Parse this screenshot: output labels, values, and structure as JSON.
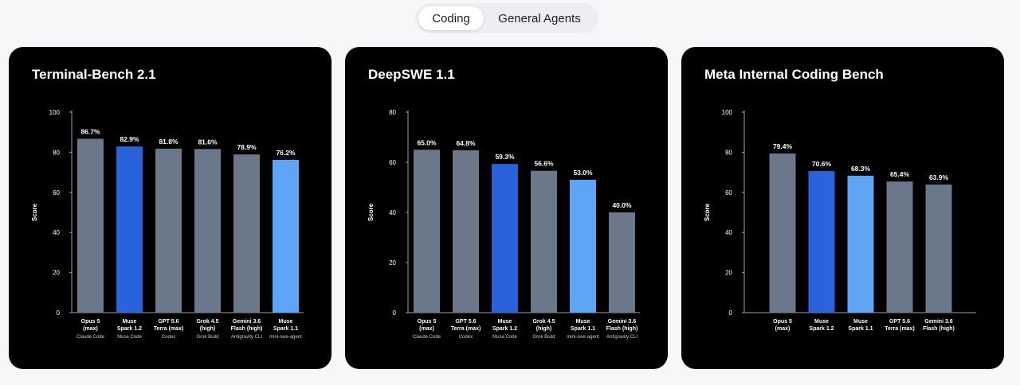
{
  "tabs": [
    {
      "label": "Coding",
      "active": true
    },
    {
      "label": "General Agents",
      "active": false
    }
  ],
  "colors": {
    "gray": "#6b7889",
    "blue": "#2962db",
    "light_blue": "#5ea5f6",
    "card_bg": "#000000",
    "page_bg": "#f6f7f9"
  },
  "chart_data": [
    {
      "type": "bar",
      "title": "Terminal-Bench 2.1",
      "ylabel": "Score",
      "ylim": [
        0,
        100
      ],
      "yticks": [
        "0",
        "20",
        "40",
        "60",
        "80",
        "100"
      ],
      "categories": [
        {
          "name": [
            "Opus 5",
            "(max)"
          ],
          "sub": "Claude Code"
        },
        {
          "name": [
            "Muse",
            "Spark 1.2"
          ],
          "sub": "Muse Code"
        },
        {
          "name": [
            "GPT 5.6",
            "Terra (max)"
          ],
          "sub": "Codex"
        },
        {
          "name": [
            "Grok 4.5",
            "(high)"
          ],
          "sub": "Grok Build"
        },
        {
          "name": [
            "Gemini 3.6",
            "Flash (high)"
          ],
          "sub": "Antigravity CLI"
        },
        {
          "name": [
            "Muse",
            "Spark 1.1"
          ],
          "sub": "mini-swe-agent"
        }
      ],
      "values": [
        86.7,
        82.9,
        81.8,
        81.6,
        78.9,
        76.2
      ],
      "labels": [
        "86.7%",
        "82.9%",
        "81.8%",
        "81.6%",
        "78.9%",
        "76.2%"
      ],
      "colors": [
        "gray",
        "blue",
        "gray",
        "gray",
        "gray",
        "light_blue"
      ]
    },
    {
      "type": "bar",
      "title": "DeepSWE 1.1",
      "ylabel": "Score",
      "ylim": [
        0,
        80
      ],
      "yticks": [
        "0",
        "20",
        "40",
        "60",
        "80"
      ],
      "categories": [
        {
          "name": [
            "Opus 5",
            "(max)"
          ],
          "sub": "Claude Code"
        },
        {
          "name": [
            "GPT 5.6",
            "Terra (max)"
          ],
          "sub": "Codex"
        },
        {
          "name": [
            "Muse",
            "Spark 1.2"
          ],
          "sub": "Muse Code"
        },
        {
          "name": [
            "Grok 4.5",
            "(high)"
          ],
          "sub": "Grok Build"
        },
        {
          "name": [
            "Muse",
            "Spark 1.1"
          ],
          "sub": "mini-swe-agent"
        },
        {
          "name": [
            "Gemini 3.6",
            "Flash (high)"
          ],
          "sub": "Antigravity CLI"
        }
      ],
      "values": [
        65.0,
        64.8,
        59.3,
        56.6,
        53.0,
        40.0
      ],
      "labels": [
        "65.0%",
        "64.8%",
        "59.3%",
        "56.6%",
        "53.0%",
        "40.0%"
      ],
      "colors": [
        "gray",
        "gray",
        "blue",
        "gray",
        "light_blue",
        "gray"
      ]
    },
    {
      "type": "bar",
      "title": "Meta Internal Coding Bench",
      "ylabel": "Score",
      "ylim": [
        0,
        100
      ],
      "yticks": [
        "0",
        "20",
        "40",
        "60",
        "80",
        "100"
      ],
      "categories": [
        {
          "name": [
            "Opus 5",
            "(max)"
          ],
          "sub": ""
        },
        {
          "name": [
            "Muse",
            "Spark 1.2"
          ],
          "sub": ""
        },
        {
          "name": [
            "Muse",
            "Spark 1.1"
          ],
          "sub": ""
        },
        {
          "name": [
            "GPT 5.6",
            "Terra (max)"
          ],
          "sub": ""
        },
        {
          "name": [
            "Gemini 3.6",
            "Flash (high)"
          ],
          "sub": ""
        }
      ],
      "values": [
        79.4,
        70.6,
        68.3,
        65.4,
        63.9
      ],
      "labels": [
        "79.4%",
        "70.6%",
        "68.3%",
        "65.4%",
        "63.9%"
      ],
      "colors": [
        "gray",
        "blue",
        "light_blue",
        "gray",
        "gray"
      ]
    }
  ]
}
